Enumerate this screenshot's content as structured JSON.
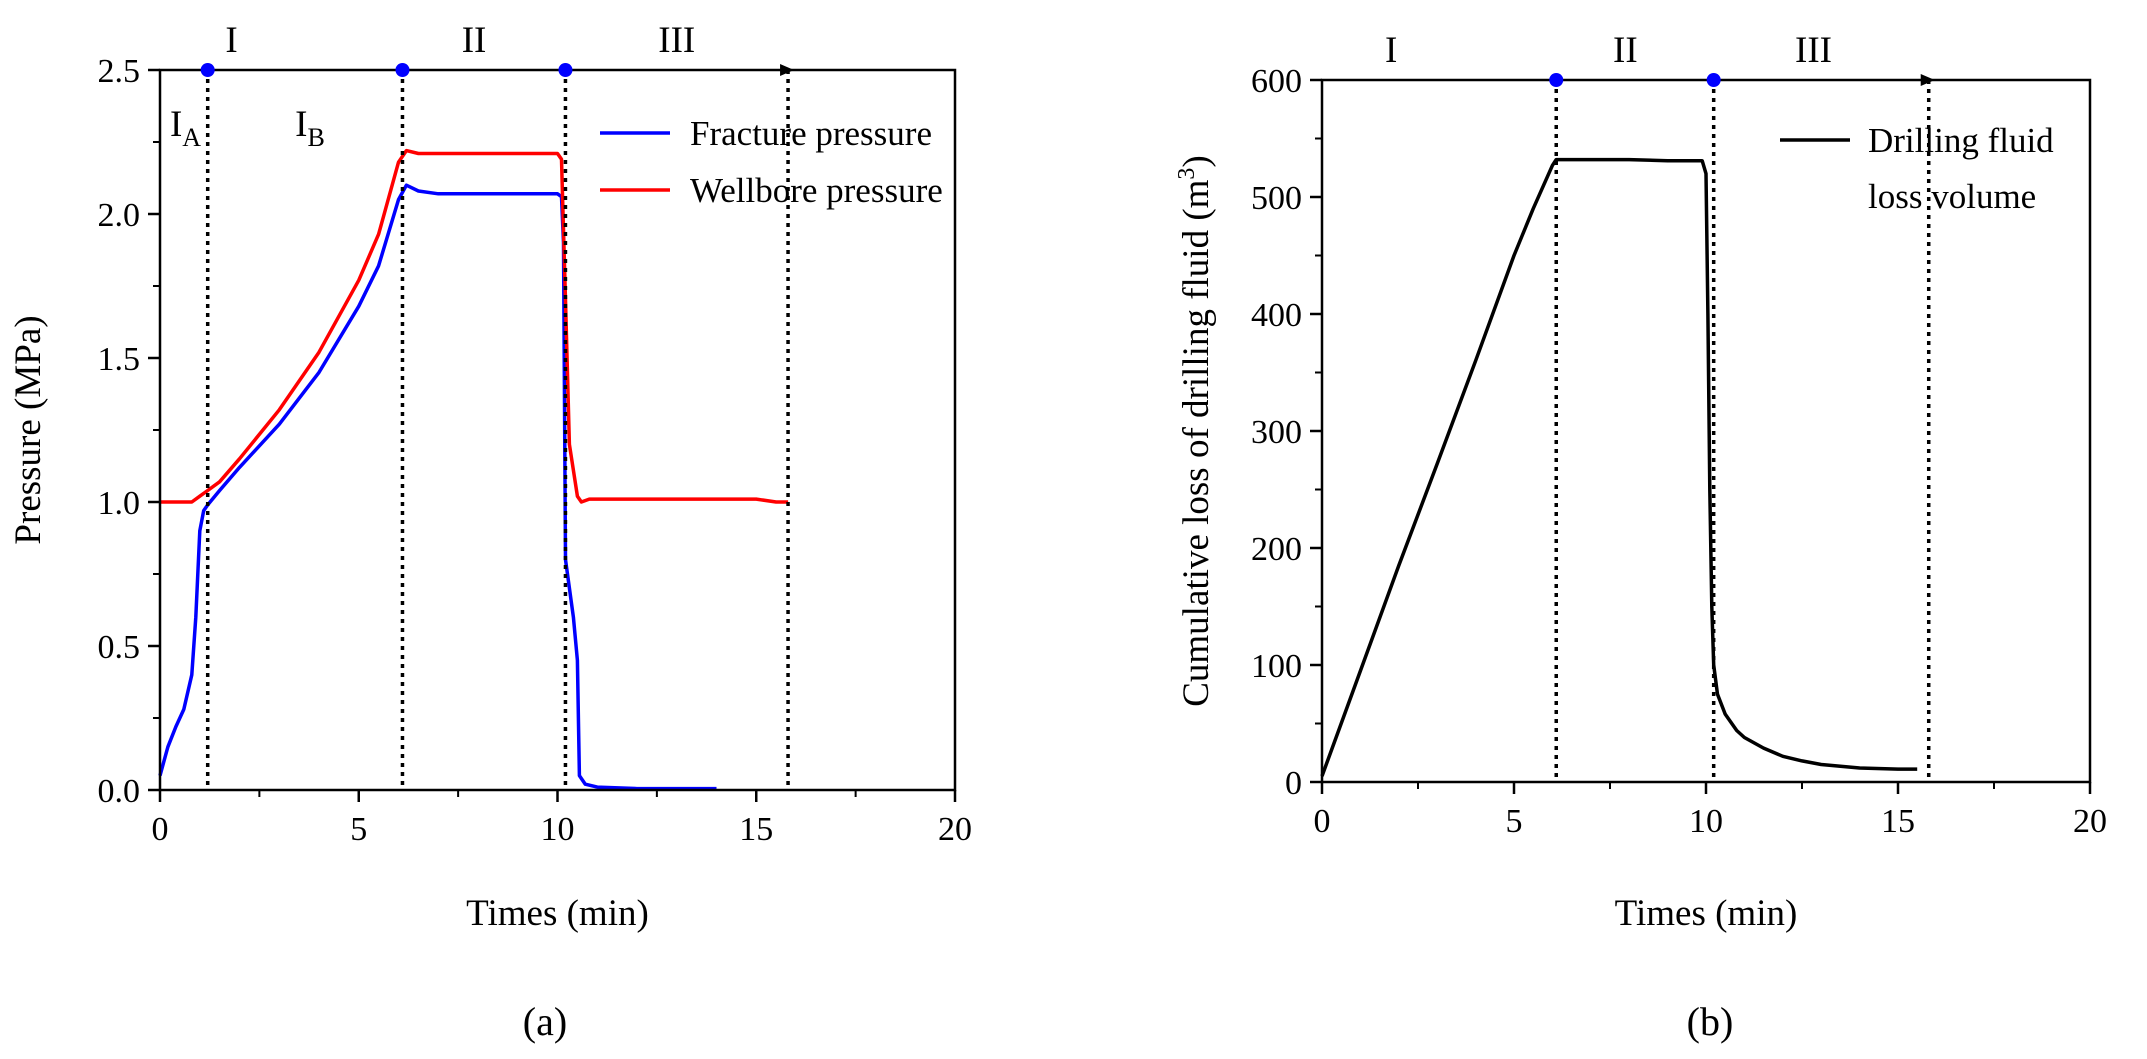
{
  "chart_data": [
    {
      "type": "line",
      "xlabel": "Times (min)",
      "ylabel": "Pressure (MPa)",
      "xlim": [
        0,
        20
      ],
      "ylim": [
        0,
        2.5
      ],
      "xticks": [
        0,
        5,
        10,
        15,
        20
      ],
      "yticks": [
        0.0,
        0.5,
        1.0,
        1.5,
        2.0,
        2.5
      ],
      "xtick_labels": [
        "0",
        "5",
        "10",
        "15",
        "20"
      ],
      "ytick_labels": [
        "0.0",
        "0.5",
        "1.0",
        "1.5",
        "2.0",
        "2.5"
      ],
      "grid": false,
      "legend_position": "top-right",
      "panel_label": "a",
      "phase_boundaries": [
        1.2,
        6.1,
        10.2,
        15.8
      ],
      "phase_labels": [
        {
          "text": "I",
          "x": 1.8,
          "y": 2.6
        },
        {
          "text": "II",
          "x": 7.9,
          "y": 2.6
        },
        {
          "text": "III",
          "x": 13.0,
          "y": 2.6
        }
      ],
      "subphase_labels": [
        {
          "main": "I",
          "sub": "A",
          "x": 0.25,
          "y": 2.32
        },
        {
          "main": "I",
          "sub": "B",
          "x": 3.4,
          "y": 2.32
        }
      ],
      "series": [
        {
          "name": "Fracture pressure",
          "color": "#0000ff",
          "x": [
            0,
            0.2,
            0.4,
            0.6,
            0.8,
            0.9,
            1.0,
            1.1,
            1.2,
            1.5,
            2.0,
            3.0,
            4.0,
            5.0,
            5.5,
            6.0,
            6.2,
            6.5,
            7.0,
            8.0,
            9.0,
            10.0,
            10.1,
            10.15,
            10.2,
            10.4,
            10.5,
            10.55,
            10.7,
            11.0,
            12.0,
            13.0,
            14.0
          ],
          "y": [
            0.05,
            0.15,
            0.22,
            0.28,
            0.4,
            0.6,
            0.9,
            0.97,
            0.99,
            1.04,
            1.12,
            1.27,
            1.45,
            1.68,
            1.82,
            2.05,
            2.1,
            2.08,
            2.07,
            2.07,
            2.07,
            2.07,
            2.06,
            1.9,
            0.8,
            0.6,
            0.45,
            0.05,
            0.02,
            0.01,
            0.005,
            0.005,
            0.005
          ]
        },
        {
          "name": "Wellbore pressure",
          "color": "#ff0000",
          "x": [
            0,
            0.5,
            0.8,
            1.0,
            1.2,
            1.5,
            2.0,
            3.0,
            4.0,
            5.0,
            5.5,
            6.0,
            6.2,
            6.5,
            7.0,
            8.0,
            9.0,
            10.0,
            10.1,
            10.2,
            10.3,
            10.5,
            10.6,
            10.8,
            11.0,
            12.0,
            13.0,
            14.0,
            15.0,
            15.5,
            15.8
          ],
          "y": [
            1.0,
            1.0,
            1.0,
            1.02,
            1.04,
            1.07,
            1.15,
            1.32,
            1.52,
            1.77,
            1.93,
            2.18,
            2.22,
            2.21,
            2.21,
            2.21,
            2.21,
            2.21,
            2.19,
            1.7,
            1.2,
            1.02,
            1.0,
            1.01,
            1.01,
            1.01,
            1.01,
            1.01,
            1.01,
            1.0,
            1.0
          ]
        }
      ]
    },
    {
      "type": "line",
      "xlabel": "Times (min)",
      "ylabel": "Cumulative loss of drilling fluid (m",
      "ylabel_sup": "3",
      "ylabel_close": ")",
      "xlim": [
        0,
        20
      ],
      "ylim": [
        0,
        600
      ],
      "xticks": [
        0,
        5,
        10,
        15,
        20
      ],
      "yticks": [
        0,
        100,
        200,
        300,
        400,
        500,
        600
      ],
      "xtick_labels": [
        "0",
        "5",
        "10",
        "15",
        "20"
      ],
      "ytick_labels": [
        "0",
        "100",
        "200",
        "300",
        "400",
        "500",
        "600"
      ],
      "grid": false,
      "legend_position": "top-right",
      "panel_label": "b",
      "phase_boundaries": [
        6.1,
        10.2,
        15.8
      ],
      "phase_labels": [
        {
          "text": "I",
          "x": 1.8,
          "y": 620
        },
        {
          "text": "II",
          "x": 7.9,
          "y": 620
        },
        {
          "text": "III",
          "x": 12.8,
          "y": 620
        }
      ],
      "series": [
        {
          "name": "Drilling fluid loss volume",
          "legend_lines": [
            "Drilling fluid",
            "loss volume"
          ],
          "color": "#000000",
          "x": [
            0,
            1.0,
            2.0,
            3.0,
            4.0,
            5.0,
            5.5,
            6.0,
            6.1,
            6.3,
            7.0,
            8.0,
            9.0,
            9.9,
            10.0,
            10.05,
            10.1,
            10.15,
            10.2,
            10.3,
            10.5,
            10.8,
            11.0,
            11.5,
            12.0,
            12.5,
            13.0,
            14.0,
            15.0,
            15.5
          ],
          "y": [
            5,
            95,
            185,
            272,
            360,
            450,
            490,
            527,
            532,
            532,
            532,
            532,
            531,
            531,
            520,
            400,
            250,
            150,
            100,
            75,
            58,
            44,
            38,
            29,
            22,
            18,
            15,
            12,
            11,
            11
          ]
        }
      ]
    }
  ],
  "panel_labels": [
    "(a)",
    "(b)"
  ]
}
